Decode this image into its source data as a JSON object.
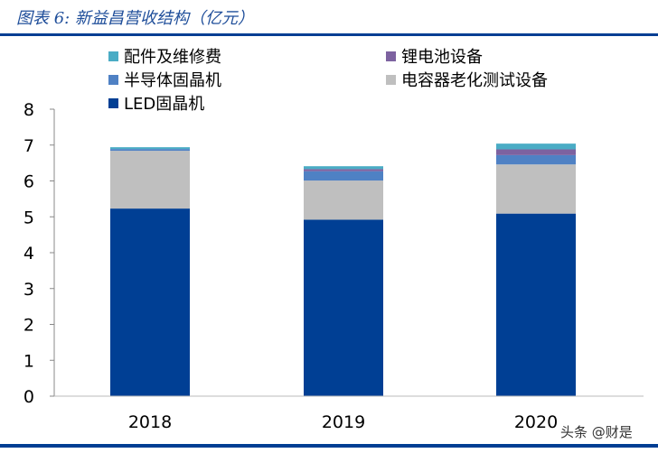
{
  "header": {
    "title": "图表 6: 新益昌营收结构（亿元）"
  },
  "watermark": "头条 @财是",
  "chart_data": {
    "type": "bar",
    "stacked": true,
    "title": "新益昌营收结构（亿元）",
    "categories": [
      "2018",
      "2019",
      "2020"
    ],
    "ylim": [
      0,
      8
    ],
    "yticks": [
      0,
      1,
      2,
      3,
      4,
      5,
      6,
      7,
      8
    ],
    "legend_position": "top",
    "series": [
      {
        "name": "LED固晶机",
        "color": "#003f94",
        "values": [
          5.23,
          4.92,
          5.09
        ]
      },
      {
        "name": "电容器老化测试设备",
        "color": "#bfbfbf",
        "values": [
          1.61,
          1.09,
          1.37
        ]
      },
      {
        "name": "半导体固晶机",
        "color": "#4f81c4",
        "values": [
          0.05,
          0.26,
          0.26
        ]
      },
      {
        "name": "锂电池设备",
        "color": "#7d62a0",
        "values": [
          0.0,
          0.06,
          0.16
        ]
      },
      {
        "name": "配件及维修费",
        "color": "#4aacc5",
        "values": [
          0.05,
          0.08,
          0.16
        ]
      }
    ]
  }
}
